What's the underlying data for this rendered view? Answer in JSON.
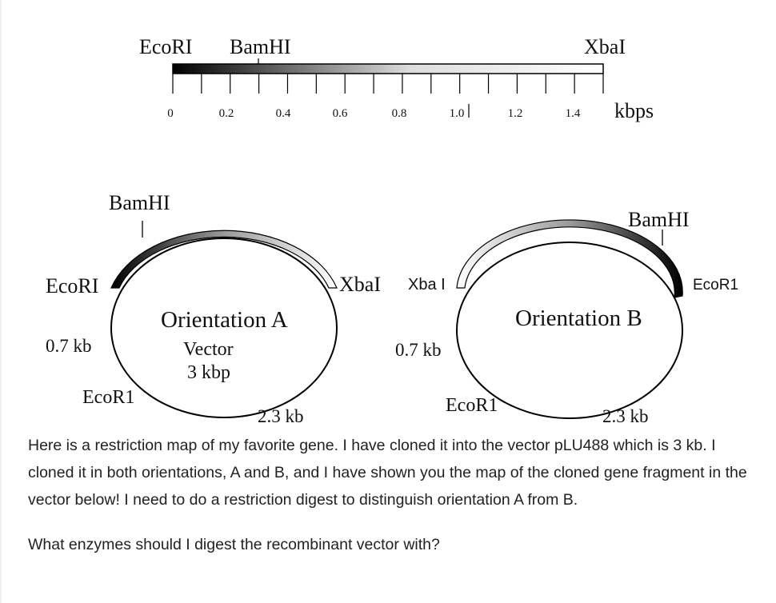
{
  "gene_map": {
    "sites": {
      "ecori": "EcoRI",
      "bamhi": "BamHI",
      "xbai": "XbaI"
    },
    "ticks": [
      "0",
      "0.2",
      "0.4",
      "0.6",
      "0.8",
      "1.0",
      "1.2",
      "1.4"
    ],
    "unit": "kbps"
  },
  "orientation_a": {
    "title": "Orientation A",
    "vector_line1": "Vector",
    "vector_line2": "3 kbp",
    "site_bamhi": "BamHI",
    "site_ecori_left": "EcoRI",
    "site_xbai": "XbaI",
    "site_ecor1_bottom": "EcoR1",
    "dist_left": "0.7 kb",
    "dist_bottom": "2.3 kb"
  },
  "orientation_b": {
    "title": "Orientation B",
    "site_xbai": "Xba I",
    "site_bamhi": "BamHI",
    "site_ecor1_right": "EcoR1",
    "site_ecor1_bottom": "EcoR1",
    "dist_left": "0.7 kb",
    "dist_bottom": "2.3 kb"
  },
  "question": {
    "paragraph": "Here is a restriction map of my favorite gene. I have cloned it into the vector pLU488 which is 3 kb. I cloned it in both orientations, A and B, and I have shown you the map of the cloned gene fragment in the vector below! I need to do a restriction digest to distinguish orientation A from B.",
    "ask": "What enzymes should I digest the recombinant vector with?"
  }
}
